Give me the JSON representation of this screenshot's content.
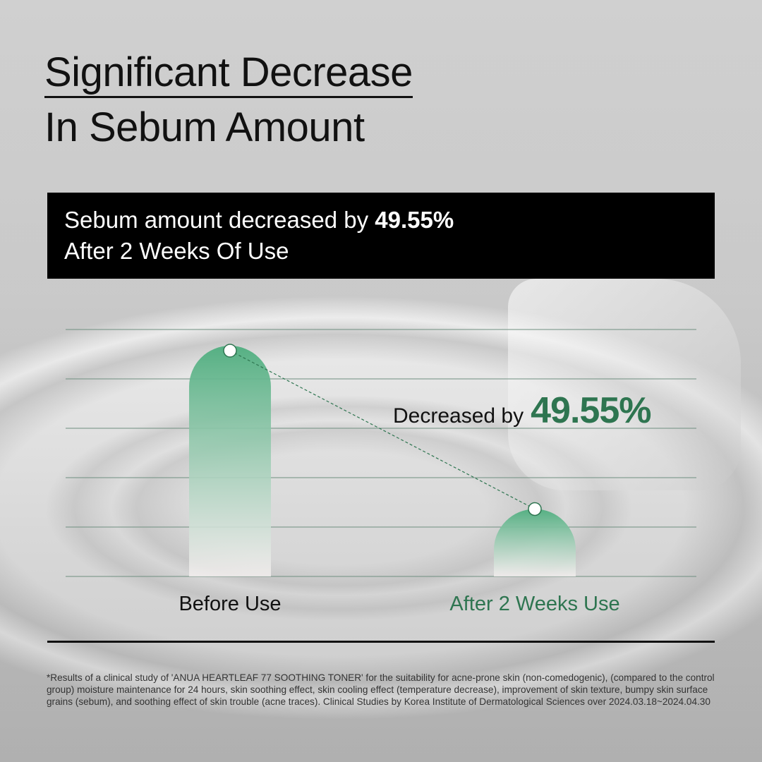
{
  "title": {
    "line1": "Significant Decrease",
    "line2": "In Sebum Amount"
  },
  "banner": {
    "line1_prefix": "Sebum amount decreased by ",
    "line1_value": "49.55%",
    "line2": "After 2 Weeks Of Use"
  },
  "chart_data": {
    "type": "bar",
    "categories": [
      "Before Use",
      "After 2 Weeks Use"
    ],
    "values": [
      100,
      50.45
    ],
    "ylim": [
      30,
      100
    ],
    "grid": true,
    "annotation": {
      "label": "Decreased by",
      "value": "49.55%"
    },
    "colors": {
      "bar": "#4fae7f",
      "after_label": "#2e7550",
      "value": "#2e7550"
    }
  },
  "footnote": "*Results of a clinical study of 'ANUA HEARTLEAF 77 SOOTHING TONER' for the suitability for acne-prone skin (non-comedogenic), (compared to the control group) moisture maintenance for 24 hours, skin soothing effect, skin cooling effect (temperature decrease), improvement of skin texture, bumpy skin surface grains (sebum), and soothing effect of skin trouble (acne traces). Clinical Studies by Korea Institute of Dermatological Sciences over 2024.03.18~2024.04.30"
}
